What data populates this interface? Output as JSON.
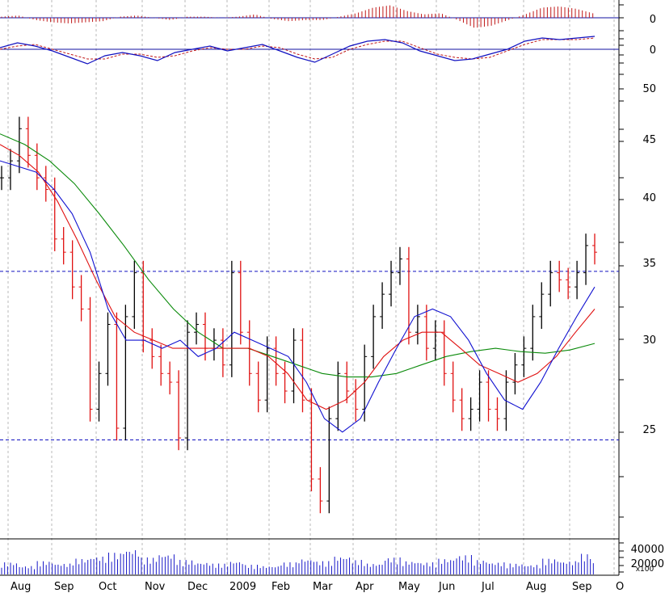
{
  "chart_data": [
    {
      "panel": "macd-histogram",
      "type": "bar",
      "y_tick_labels": [
        "0"
      ],
      "series": [
        {
          "values": [
            0.1,
            0.2,
            -0.2,
            -0.4,
            -0.5,
            -0.4,
            -0.3,
            0.1,
            0.2,
            0.0,
            -0.2,
            0.1,
            0.1,
            0.0,
            0.1,
            0.3,
            -0.1,
            -0.3,
            -0.2,
            -0.2,
            0.1,
            0.4,
            0.9,
            1.1,
            0.6,
            0.3,
            0.4,
            -0.2,
            -0.9,
            -0.7,
            -0.2,
            0.3,
            0.9,
            1.0,
            0.8,
            0.4
          ]
        }
      ],
      "colors": {
        "bar": "#c01818",
        "zero_line": "#1010a0"
      }
    },
    {
      "panel": "macd-lines",
      "type": "line",
      "y_tick_labels": [
        "0"
      ],
      "series": [
        {
          "values": [
            0.1,
            0.4,
            0.2,
            -0.1,
            -0.5,
            -0.9,
            -0.4,
            -0.2,
            -0.4,
            -0.7,
            -0.2,
            0.0,
            0.2,
            -0.1,
            0.1,
            0.3,
            -0.1,
            -0.5,
            -0.8,
            -0.3,
            0.2,
            0.5,
            0.6,
            0.4,
            -0.1,
            -0.4,
            -0.7,
            -0.6,
            -0.3,
            0.0,
            0.5,
            0.7,
            0.6,
            0.7,
            0.8
          ]
        },
        {
          "values": [
            0.0,
            0.2,
            0.3,
            0.0,
            -0.3,
            -0.6,
            -0.6,
            -0.3,
            -0.3,
            -0.5,
            -0.4,
            -0.1,
            0.1,
            0.0,
            0.0,
            0.2,
            0.1,
            -0.3,
            -0.6,
            -0.5,
            0.0,
            0.3,
            0.5,
            0.5,
            0.1,
            -0.3,
            -0.5,
            -0.6,
            -0.5,
            -0.1,
            0.3,
            0.6,
            0.6,
            0.6,
            0.7
          ]
        }
      ],
      "colors": {
        "macd": "#1010c0",
        "signal": "#c01818",
        "zero_line": "#1010a0"
      }
    },
    {
      "panel": "price",
      "type": "line",
      "y_scale": "log",
      "y_ticks": [
        25,
        30,
        35,
        40,
        45,
        50
      ],
      "x_tick_labels": [
        "Aug",
        "Sep",
        "Oct",
        "Nov",
        "Dec",
        "2009",
        "Feb",
        "Mar",
        "Apr",
        "May",
        "Jun",
        "Jul",
        "Aug",
        "Sep",
        "O"
      ],
      "reference_lines": [
        34.6,
        24.4
      ],
      "series": [
        {
          "values": [
            42.0,
            43.5,
            46.5,
            44.0,
            42.0,
            41.0,
            37.0,
            36.0,
            33.5,
            32.0,
            26.0,
            28.0,
            31.0,
            25.0,
            31.5,
            34.5,
            30.0,
            29.0,
            28.0,
            27.5,
            24.5,
            30.5,
            31.0,
            29.5,
            30.0,
            28.5,
            34.5,
            30.5,
            28.0,
            26.5,
            29.5,
            28.0,
            27.0,
            30.0,
            26.5,
            22.5,
            21.5,
            25.5,
            28.0,
            27.0,
            26.0,
            29.0,
            31.5,
            33.0,
            34.5,
            35.5,
            30.5,
            31.5,
            29.5,
            30.5,
            28.0,
            26.5,
            25.5,
            26.0,
            27.5,
            26.0,
            25.5,
            27.5,
            28.5,
            29.5,
            31.5,
            33.0,
            34.5,
            34.0,
            33.5,
            34.5,
            36.5,
            36.0
          ]
        },
        {
          "values": [
            43.5,
            43.0,
            42.5,
            41.0,
            39.0,
            36.0,
            32.0,
            30.0,
            30.0,
            29.5,
            30.0,
            29.0,
            29.5,
            30.5,
            30.0,
            29.5,
            29.0,
            27.5,
            25.5,
            24.8,
            25.5,
            27.5,
            29.5,
            31.5,
            32.0,
            31.5,
            30.0,
            28.0,
            26.5,
            26.0,
            27.5,
            29.5,
            31.5,
            33.5
          ]
        },
        {
          "values": [
            45.0,
            44.0,
            42.5,
            40.0,
            37.0,
            34.0,
            31.5,
            30.5,
            30.0,
            29.5,
            29.5,
            29.5,
            29.5,
            29.5,
            29.0,
            28.0,
            26.5,
            26.0,
            26.5,
            27.5,
            29.0,
            30.0,
            30.5,
            30.5,
            29.5,
            28.5,
            28.0,
            27.5,
            28.0,
            29.0,
            30.5,
            32.0
          ]
        },
        {
          "values": [
            46.0,
            45.0,
            43.5,
            41.5,
            39.0,
            36.5,
            34.0,
            32.0,
            30.5,
            29.5,
            29.5,
            29.0,
            28.5,
            28.0,
            27.8,
            27.8,
            28.0,
            28.5,
            29.0,
            29.3,
            29.5,
            29.3,
            29.2,
            29.4,
            29.8
          ]
        }
      ],
      "colors": {
        "up_bar": "#000000",
        "down_bar": "#e01010",
        "ma_short": "#1010d0",
        "ma_medium": "#e01010",
        "ma_long": "#0a8a0a",
        "reference_line": "#1010c0",
        "grid": "#b8b8b8"
      }
    },
    {
      "panel": "volume",
      "type": "bar",
      "y_tick_labels": [
        "40000",
        "20000"
      ],
      "y_unit_label": "x100",
      "series": [
        {
          "values": [
            20000,
            14000,
            22000,
            18000,
            26000,
            30000,
            36000,
            42000,
            28000,
            34000,
            24000,
            20000,
            18000,
            22000,
            16000,
            14000,
            20000,
            26000,
            22000,
            30000,
            24000,
            18000,
            28000,
            22000,
            20000,
            26000,
            32000,
            24000,
            20000,
            18000,
            16000,
            26000,
            22000,
            34000,
            20000
          ]
        }
      ],
      "colors": {
        "bar": "#1818c8"
      }
    }
  ]
}
